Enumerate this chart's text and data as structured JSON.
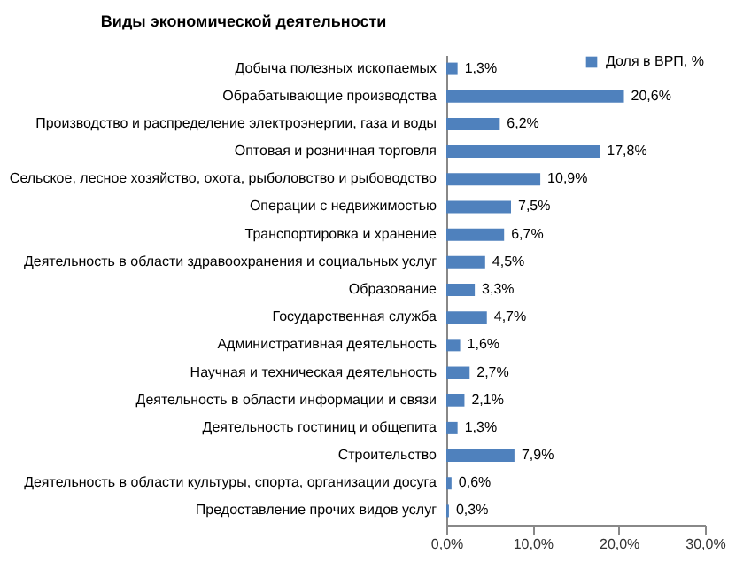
{
  "chart_data": {
    "type": "bar",
    "orientation": "horizontal",
    "title": "Виды экономической деятельности",
    "categories": [
      "Добыча полезных ископаемых",
      "Обрабатывающие производства",
      "Производство и распределение электроэнергии, газа и воды",
      "Оптовая и розничная торговля",
      "Сельское, лесное хозяйство, охота, рыболовство и рыбоводство",
      "Операции с недвижимостью",
      "Транспортировка и хранение",
      "Деятельность в области здравоохранения и социальных услуг",
      "Образование",
      "Государственная служба",
      "Административная деятельность",
      "Научная и техническая деятельность",
      "Деятельность в области информации и связи",
      "Деятельность гостиниц и общепита",
      "Строительство",
      "Деятельность в области культуры, спорта, организации досуга",
      "Предоставление прочих видов услуг"
    ],
    "series": [
      {
        "name": "Доля в ВРП, %",
        "color": "#4f81bd",
        "values": [
          1.3,
          20.6,
          6.2,
          17.8,
          10.9,
          7.5,
          6.7,
          4.5,
          3.3,
          4.7,
          1.6,
          2.7,
          2.1,
          1.3,
          7.9,
          0.6,
          0.3
        ],
        "value_labels": [
          "1,3%",
          "20,6%",
          "6,2%",
          "17,8%",
          "10,9%",
          "7,5%",
          "6,7%",
          "4,5%",
          "3,3%",
          "4,7%",
          "1,6%",
          "2,7%",
          "2,1%",
          "1,3%",
          "7,9%",
          "0,6%",
          "0,3%"
        ]
      }
    ],
    "xlim": [
      0,
      30
    ],
    "xticks": [
      {
        "value": 0,
        "label": "0,0%"
      },
      {
        "value": 10,
        "label": "10,0%"
      },
      {
        "value": 20,
        "label": "20,0%"
      },
      {
        "value": 30,
        "label": "30,0%"
      }
    ],
    "legend": "top right"
  }
}
